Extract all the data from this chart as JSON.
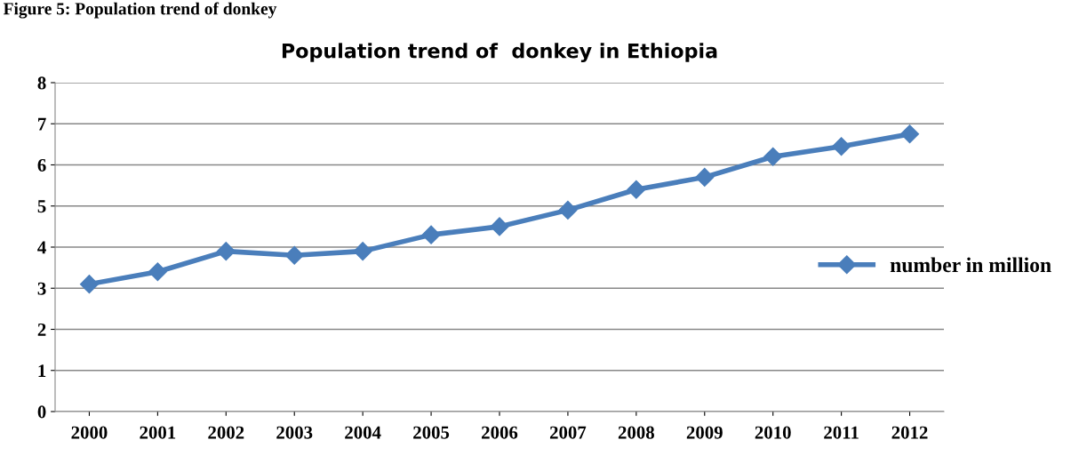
{
  "chart_data": {
    "type": "line",
    "title": "Population trend of  donkey in Ethiopia",
    "annotations": [
      "Figure 5: Population trend of donkey"
    ],
    "categories": [
      "2000",
      "2001",
      "2002",
      "2003",
      "2004",
      "2005",
      "2006",
      "2007",
      "2008",
      "2009",
      "2010",
      "2011",
      "2012"
    ],
    "series": [
      {
        "name": "number in million",
        "color": "#4a7ebb",
        "values": [
          3.1,
          3.4,
          3.9,
          3.8,
          3.9,
          4.3,
          4.5,
          4.9,
          5.4,
          5.7,
          6.2,
          6.45,
          6.75
        ]
      }
    ],
    "ylim": [
      0,
      8
    ],
    "yticks": [
      0,
      1,
      2,
      3,
      4,
      5,
      6,
      7,
      8
    ],
    "grid": "y",
    "legend": "right",
    "marker": "diamond",
    "line_style": "solid"
  }
}
